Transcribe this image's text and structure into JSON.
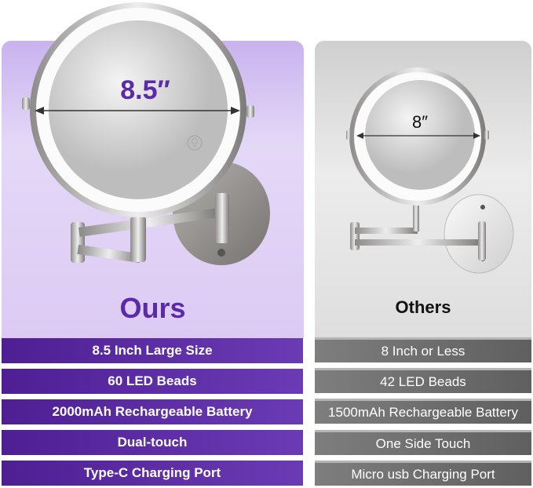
{
  "ours": {
    "heading": "Ours",
    "mirror_size_label": "8.5″",
    "features": [
      "8.5 Inch Large Size",
      "60 LED Beads",
      "2000mAh Rechargeable Battery",
      "Dual-touch",
      "Type-C Charging Port"
    ],
    "accent_color": "#5a2aa8"
  },
  "others": {
    "heading": "Others",
    "mirror_size_label": "8″",
    "features": [
      "8 Inch or Less",
      "42 LED Beads",
      "1500mAh Rechargeable Battery",
      "One Side Touch",
      "Micro usb Charging Port"
    ],
    "accent_color": "#6e6e6e"
  },
  "icons": {
    "touch_button": "lightbulb-icon"
  }
}
